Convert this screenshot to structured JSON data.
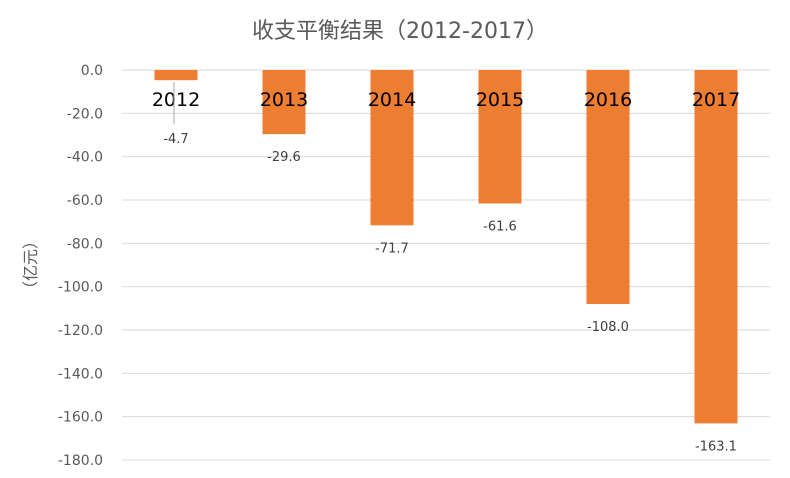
{
  "chart_data": {
    "type": "bar",
    "title": "收支平衡结果（2012-2017）",
    "ylabel": "（亿元）",
    "xlabel": "",
    "categories": [
      "2012",
      "2013",
      "2014",
      "2015",
      "2016",
      "2017"
    ],
    "values": [
      -4.7,
      -29.6,
      -71.7,
      -61.6,
      -108.0,
      -163.1
    ],
    "data_labels": [
      "-4.7",
      "-29.6",
      "-71.7",
      "-61.6",
      "-108.0",
      "-163.1"
    ],
    "yticks": [
      "0.0",
      "-20.0",
      "-40.0",
      "-60.0",
      "-80.0",
      "-100.0",
      "-120.0",
      "-140.0",
      "-160.0",
      "-180.0"
    ],
    "ylim": [
      -180,
      0
    ],
    "grid": true,
    "legend": "none",
    "bar_color": "#ed7d31"
  }
}
